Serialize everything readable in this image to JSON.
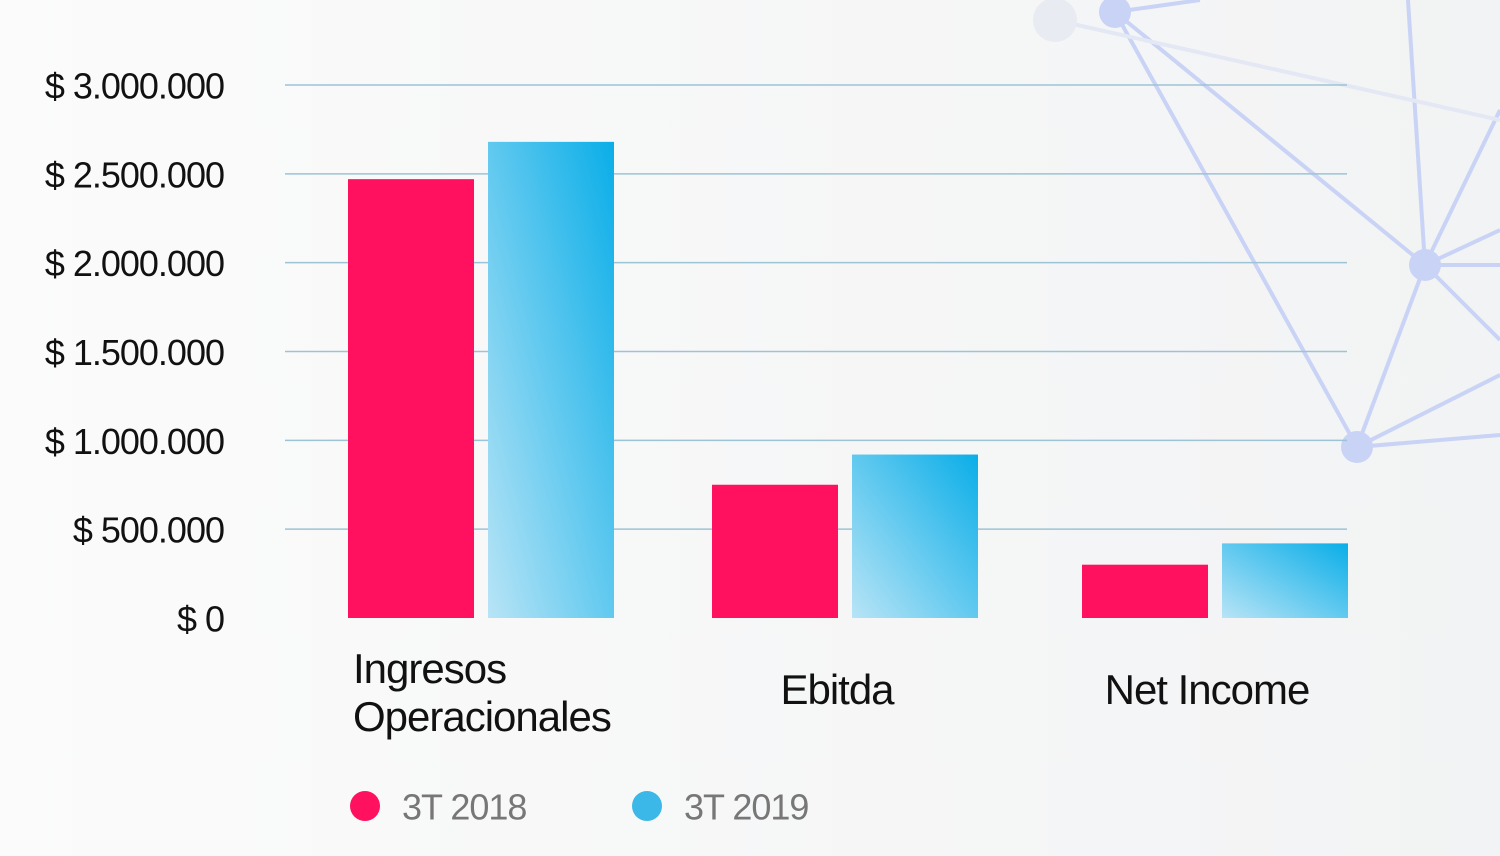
{
  "chart_data": {
    "type": "bar",
    "categories": [
      "Ingresos Operacionales",
      "Ebitda",
      "Net Income"
    ],
    "series": [
      {
        "name": "3T 2018",
        "color": "#ff1160",
        "values": [
          2470000,
          750000,
          300000
        ]
      },
      {
        "name": "3T 2019",
        "color": "#0aaee8",
        "values": [
          2680000,
          920000,
          420000
        ]
      }
    ],
    "ylim": [
      0,
      3000000
    ],
    "yticks": [
      {
        "value": 0,
        "label": "$ 0"
      },
      {
        "value": 500000,
        "label": "$ 500.000"
      },
      {
        "value": 1000000,
        "label": "$ 1.000.000"
      },
      {
        "value": 1500000,
        "label": "$ 1.500.000"
      },
      {
        "value": 2000000,
        "label": "$ 2.000.000"
      },
      {
        "value": 2500000,
        "label": "$ 2.500.000"
      },
      {
        "value": 3000000,
        "label": "$ 3.000.000"
      }
    ],
    "grid": true
  }
}
